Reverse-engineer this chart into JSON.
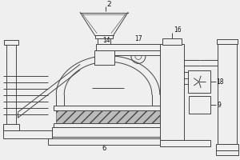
{
  "bg_color": "#efefef",
  "line_color": "#444444",
  "label_color": "#111111",
  "fig_w": 3.0,
  "fig_h": 2.0,
  "dpi": 100
}
